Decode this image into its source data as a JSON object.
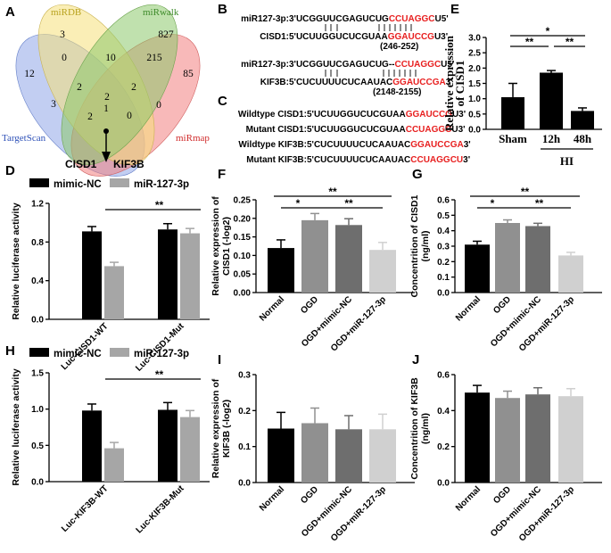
{
  "panels": {
    "A": {
      "label": "A",
      "sets": [
        "miRDB",
        "miRwalk",
        "TargetScan",
        "miRmap"
      ],
      "set_colors": [
        "#f5e07a",
        "#8dc86b",
        "#8fa6e8",
        "#f28080"
      ],
      "counts": [
        "3",
        "827",
        "12",
        "85",
        "0",
        "10",
        "215",
        "2",
        "2",
        "3",
        "2",
        "1",
        "0",
        "2",
        "0"
      ],
      "targets": [
        "CISD1",
        "KIF3B"
      ]
    },
    "B": {
      "label": "B",
      "rows": [
        {
          "name": "miR127-3p:",
          "pre": " 3'UCGGUUCGAGUCUG",
          "red": "CCUAGGC",
          "post": "U5'"
        },
        {
          "name": "CISD1:",
          "pre": " 5'UCUUGGUCUCGUAA",
          "red": "GGAUCCG",
          "post": "U3'"
        },
        {
          "name": "",
          "pre": "(246-252)",
          "red": "",
          "post": ""
        },
        {
          "name": "miR127-3p:",
          "pre": " 3'UCGGUUCGAGUCUG--",
          "red": "CCUAGGC",
          "post": "U5'"
        },
        {
          "name": "KIF3B:",
          "pre": " 5'CUCUUUUCUCAAUAC",
          "red": "GGAUCCGA",
          "post": "3'"
        },
        {
          "name": "",
          "pre": "(2148-2155)",
          "red": "",
          "post": ""
        }
      ]
    },
    "C": {
      "label": "C",
      "rows": [
        {
          "name": "Wildtype CISD1:",
          "pre": " 5'UCUUGGUCUCGUAA",
          "red": "GGAUCCG",
          "post": "U3'"
        },
        {
          "name": "Mutant CISD1:",
          "pre": " 5'UCUUGGUCUCGUAA",
          "red": "CCUAGGC",
          "post": "U3'"
        },
        {
          "name": "Wildtype KIF3B:",
          "pre": " 5'CUCUUUUCUCAAUAC",
          "red": "GGAUCCGA",
          "post": "3'"
        },
        {
          "name": "Mutant KIF3B:",
          "pre": " 5'CUCUUUUCUCAAUAC",
          "red": "CCUAGGCU",
          "post": "3'"
        }
      ]
    }
  },
  "chart_data": [
    {
      "id": "E",
      "label": "E",
      "type": "bar",
      "title": "",
      "categories": [
        "Sham",
        "12h",
        "48h"
      ],
      "values": [
        1.05,
        1.85,
        0.6
      ],
      "errors": [
        0.45,
        0.07,
        0.1
      ],
      "colors": [
        "#000000",
        "#000000",
        "#000000"
      ],
      "ylabel": "Relative expression of CISD1",
      "xlabel": "",
      "group_label": "HI",
      "ylim": [
        0,
        3
      ],
      "yticks": [
        "0.0",
        "0.5",
        "1.0",
        "1.5",
        "2.0",
        "2.5",
        "3.0"
      ],
      "significance": [
        {
          "from": 0,
          "to": 1,
          "text": "**"
        },
        {
          "from": 0,
          "to": 2,
          "text": "*"
        },
        {
          "from": 1,
          "to": 2,
          "text": "**"
        }
      ]
    },
    {
      "id": "D",
      "label": "D",
      "type": "bar",
      "title": "",
      "categories": [
        "Luc-CISD1-WT",
        "Luc-CISD1-Mut"
      ],
      "series": [
        {
          "name": "mimic-NC",
          "color": "#000000",
          "values": [
            0.91,
            0.93
          ],
          "errors": [
            0.05,
            0.06
          ]
        },
        {
          "name": "miR-127-3p",
          "color": "#a6a6a6",
          "values": [
            0.55,
            0.89
          ],
          "errors": [
            0.04,
            0.05
          ]
        }
      ],
      "ylabel": "Relative luciferase activity",
      "xlabel": "",
      "ylim": [
        0,
        1.2
      ],
      "yticks": [
        "0.0",
        "0.4",
        "0.8",
        "1.2"
      ],
      "significance": [
        {
          "text": "**"
        }
      ]
    },
    {
      "id": "F",
      "label": "F",
      "type": "bar",
      "title": "",
      "categories": [
        "Normal",
        "OGD",
        "OGD+mimic-NC",
        "OGD+miR-127-3p"
      ],
      "values": [
        0.12,
        0.195,
        0.182,
        0.115
      ],
      "errors": [
        0.022,
        0.018,
        0.017,
        0.02
      ],
      "colors": [
        "#000000",
        "#909090",
        "#6e6e6e",
        "#d0d0d0"
      ],
      "ylabel": "Relative expression of CISD1 (-log2)",
      "xlabel": "",
      "ylim": [
        0,
        0.25
      ],
      "yticks": [
        "0.00",
        "0.05",
        "0.10",
        "0.15",
        "0.20",
        "0.25"
      ],
      "significance": [
        {
          "from": 0,
          "to": 3,
          "text": "**"
        },
        {
          "from": 0,
          "to": 1,
          "text": "*"
        },
        {
          "from": 1,
          "to": 3,
          "text": "**"
        }
      ]
    },
    {
      "id": "G",
      "label": "G",
      "type": "bar",
      "title": "",
      "categories": [
        "Normal",
        "OGD",
        "OGD+mimic-NC",
        "OGD+miR-127-3p"
      ],
      "values": [
        0.31,
        0.45,
        0.43,
        0.24
      ],
      "errors": [
        0.022,
        0.02,
        0.018,
        0.02
      ],
      "colors": [
        "#000000",
        "#909090",
        "#6e6e6e",
        "#d0d0d0"
      ],
      "ylabel": "Concentrition of CISD1 (ng/ml)",
      "xlabel": "",
      "ylim": [
        0,
        0.6
      ],
      "yticks": [
        "0.0",
        "0.1",
        "0.2",
        "0.3",
        "0.4",
        "0.5",
        "0.6"
      ],
      "significance": [
        {
          "from": 0,
          "to": 3,
          "text": "**"
        },
        {
          "from": 0,
          "to": 1,
          "text": "*"
        },
        {
          "from": 1,
          "to": 3,
          "text": "**"
        }
      ]
    },
    {
      "id": "H",
      "label": "H",
      "type": "bar",
      "title": "",
      "categories": [
        "Luc-KIF3B-WT",
        "Luc-KIF3B-Mut"
      ],
      "series": [
        {
          "name": "mimic-NC",
          "color": "#000000",
          "values": [
            0.98,
            0.99
          ],
          "errors": [
            0.09,
            0.1
          ]
        },
        {
          "name": "miR-127-3p",
          "color": "#a6a6a6",
          "values": [
            0.46,
            0.89
          ],
          "errors": [
            0.08,
            0.09
          ]
        }
      ],
      "ylabel": "Relative luciferase activity",
      "xlabel": "",
      "ylim": [
        0,
        1.5
      ],
      "yticks": [
        "0.0",
        "0.5",
        "1.0",
        "1.5"
      ],
      "significance": [
        {
          "text": "**"
        }
      ]
    },
    {
      "id": "I",
      "label": "I",
      "type": "bar",
      "title": "",
      "categories": [
        "Normal",
        "OGD",
        "OGD+mimic-NC",
        "OGD+miR-127-3p"
      ],
      "values": [
        0.15,
        0.165,
        0.148,
        0.148
      ],
      "errors": [
        0.045,
        0.042,
        0.038,
        0.042
      ],
      "colors": [
        "#000000",
        "#909090",
        "#6e6e6e",
        "#d0d0d0"
      ],
      "ylabel": "Relative expression of KIF3B (-log2)",
      "xlabel": "",
      "ylim": [
        0,
        0.3
      ],
      "yticks": [
        "0.0",
        "0.1",
        "0.2",
        "0.3"
      ],
      "significance": []
    },
    {
      "id": "J",
      "label": "J",
      "type": "bar",
      "title": "",
      "categories": [
        "Normal",
        "OGD",
        "OGD+mimic-NC",
        "OGD+miR-127-3p"
      ],
      "values": [
        0.5,
        0.47,
        0.49,
        0.48
      ],
      "errors": [
        0.04,
        0.038,
        0.037,
        0.042
      ],
      "colors": [
        "#000000",
        "#909090",
        "#6e6e6e",
        "#d0d0d0"
      ],
      "ylabel": "Concentrition of KIF3B (ng/ml)",
      "xlabel": "",
      "ylim": [
        0,
        0.6
      ],
      "yticks": [
        "0.0",
        "0.2",
        "0.4",
        "0.6"
      ],
      "significance": []
    }
  ]
}
